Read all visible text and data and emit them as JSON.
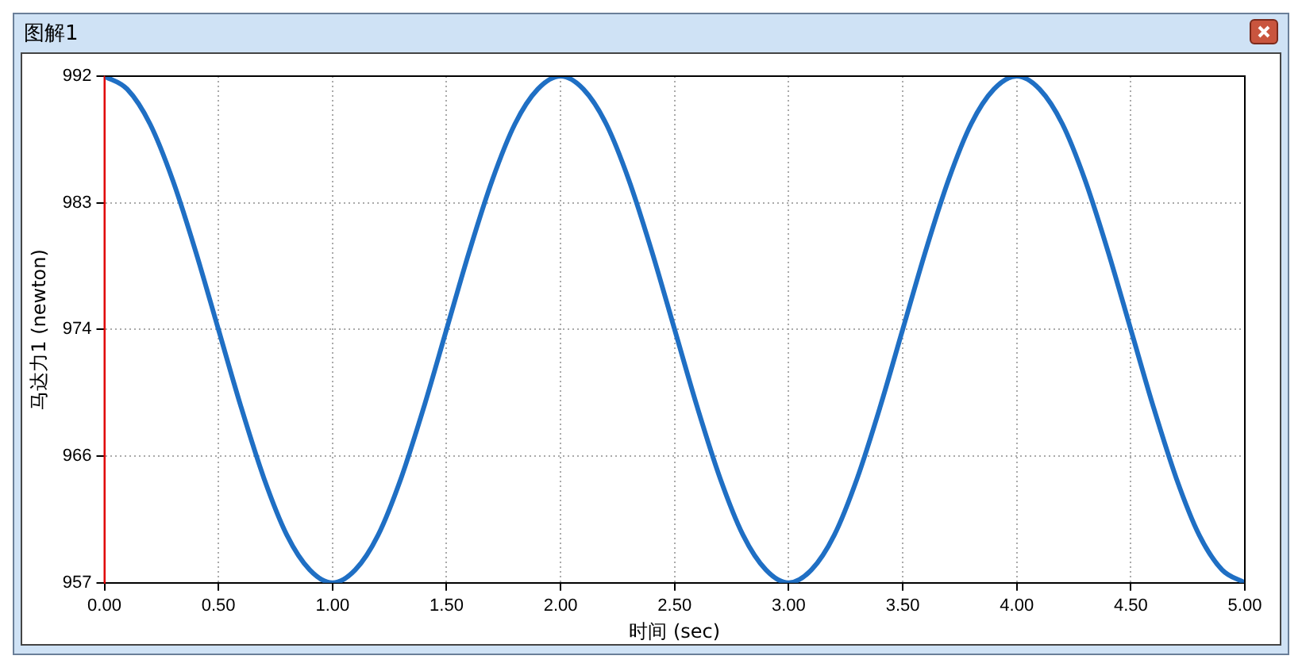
{
  "chart_data": {
    "type": "line",
    "title": "图解1",
    "xlabel": "时间 (sec)",
    "ylabel": "马达力1 (newton)",
    "x": [
      0,
      0.1,
      0.2,
      0.3,
      0.4,
      0.5,
      0.6,
      0.7,
      0.8,
      0.9,
      1,
      1.1,
      1.2,
      1.3,
      1.4,
      1.5,
      1.6,
      1.7,
      1.8,
      1.9,
      2,
      2.1,
      2.2,
      2.3,
      2.4,
      2.5,
      2.6,
      2.7,
      2.8,
      2.9,
      3,
      3.1,
      3.2,
      3.3,
      3.4,
      3.5,
      3.6,
      3.7,
      3.8,
      3.9,
      4,
      4.1,
      4.2,
      4.3,
      4.4,
      4.5,
      4.6,
      4.7,
      4.8,
      4.9,
      5
    ],
    "series": [
      {
        "color": "#1f6fc4",
        "values": [
          992,
          991.1,
          988.7,
          984.8,
          979.9,
          974.5,
          969.1,
          964.2,
          960.3,
          957.9,
          957,
          957.9,
          960.3,
          964.2,
          969.1,
          974.5,
          979.9,
          984.8,
          988.7,
          991.1,
          992,
          991.1,
          988.7,
          984.8,
          979.9,
          974.5,
          969.1,
          964.2,
          960.3,
          957.9,
          957,
          957.9,
          960.3,
          964.2,
          969.1,
          974.5,
          979.9,
          984.8,
          988.7,
          991.1,
          992,
          991.1,
          988.7,
          984.8,
          979.9,
          974.5,
          969.1,
          964.2,
          960.3,
          957.9,
          957
        ]
      }
    ],
    "xlim": [
      0,
      5
    ],
    "xticks": [
      {
        "value": 0,
        "label": "0.00"
      },
      {
        "value": 0.5,
        "label": "0.50"
      },
      {
        "value": 1,
        "label": "1.00"
      },
      {
        "value": 1.5,
        "label": "1.50"
      },
      {
        "value": 2,
        "label": "2.00"
      },
      {
        "value": 2.5,
        "label": "2.50"
      },
      {
        "value": 3,
        "label": "3.00"
      },
      {
        "value": 3.5,
        "label": "3.50"
      },
      {
        "value": 4,
        "label": "4.00"
      },
      {
        "value": 4.5,
        "label": "4.50"
      },
      {
        "value": 5,
        "label": "5.00"
      }
    ],
    "ylim": [
      957,
      992
    ],
    "yticks": [
      957,
      {
        "value": 965.75,
        "label": "966"
      },
      {
        "value": 974.5,
        "label": "974"
      },
      {
        "value": 983.25,
        "label": "983"
      },
      992
    ],
    "grid": true,
    "marker": "none",
    "line_style": "solid"
  }
}
